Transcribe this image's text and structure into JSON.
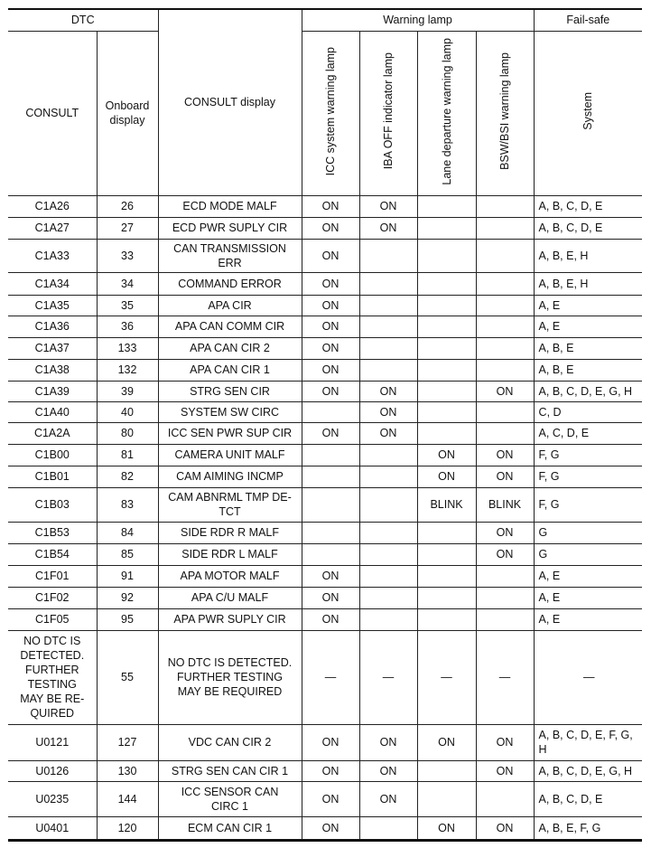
{
  "header": {
    "dtc": "DTC",
    "consult": "CONSULT",
    "onboard": "Onboard\ndisplay",
    "consult_display": "CONSULT display",
    "warning_lamp": "Warning lamp",
    "fail_safe": "Fail-safe",
    "icc": "ICC system warning lamp",
    "iba": "IBA OFF indicator lamp",
    "lane": "Lane departure warning lamp",
    "bsw": "BSW/BSI warning lamp",
    "system": "System"
  },
  "rows": [
    {
      "consult": "C1A26",
      "onboard": "26",
      "display": "ECD MODE MALF",
      "icc": "ON",
      "iba": "ON",
      "lane": "",
      "bsw": "",
      "system": "A, B, C, D, E"
    },
    {
      "consult": "C1A27",
      "onboard": "27",
      "display": "ECD PWR SUPLY CIR",
      "icc": "ON",
      "iba": "ON",
      "lane": "",
      "bsw": "",
      "system": "A, B, C, D, E"
    },
    {
      "consult": "C1A33",
      "onboard": "33",
      "display": "CAN TRANSMISSION\nERR",
      "icc": "ON",
      "iba": "",
      "lane": "",
      "bsw": "",
      "system": "A, B, E, H"
    },
    {
      "consult": "C1A34",
      "onboard": "34",
      "display": "COMMAND ERROR",
      "icc": "ON",
      "iba": "",
      "lane": "",
      "bsw": "",
      "system": "A, B, E, H"
    },
    {
      "consult": "C1A35",
      "onboard": "35",
      "display": "APA CIR",
      "icc": "ON",
      "iba": "",
      "lane": "",
      "bsw": "",
      "system": "A, E"
    },
    {
      "consult": "C1A36",
      "onboard": "36",
      "display": "APA CAN COMM CIR",
      "icc": "ON",
      "iba": "",
      "lane": "",
      "bsw": "",
      "system": "A, E"
    },
    {
      "consult": "C1A37",
      "onboard": "133",
      "display": "APA CAN CIR 2",
      "icc": "ON",
      "iba": "",
      "lane": "",
      "bsw": "",
      "system": "A, B, E"
    },
    {
      "consult": "C1A38",
      "onboard": "132",
      "display": "APA CAN CIR 1",
      "icc": "ON",
      "iba": "",
      "lane": "",
      "bsw": "",
      "system": "A, B, E"
    },
    {
      "consult": "C1A39",
      "onboard": "39",
      "display": "STRG SEN CIR",
      "icc": "ON",
      "iba": "ON",
      "lane": "",
      "bsw": "ON",
      "system": "A, B, C, D, E, G, H"
    },
    {
      "consult": "C1A40",
      "onboard": "40",
      "display": "SYSTEM SW CIRC",
      "icc": "",
      "iba": "ON",
      "lane": "",
      "bsw": "",
      "system": "C, D"
    },
    {
      "consult": "C1A2A",
      "onboard": "80",
      "display": "ICC SEN PWR SUP CIR",
      "icc": "ON",
      "iba": "ON",
      "lane": "",
      "bsw": "",
      "system": "A, C, D, E"
    },
    {
      "consult": "C1B00",
      "onboard": "81",
      "display": "CAMERA UNIT MALF",
      "icc": "",
      "iba": "",
      "lane": "ON",
      "bsw": "ON",
      "system": "F, G"
    },
    {
      "consult": "C1B01",
      "onboard": "82",
      "display": "CAM AIMING INCMP",
      "icc": "",
      "iba": "",
      "lane": "ON",
      "bsw": "ON",
      "system": "F, G"
    },
    {
      "consult": "C1B03",
      "onboard": "83",
      "display": "CAM ABNRML TMP DE-\nTCT",
      "icc": "",
      "iba": "",
      "lane": "BLINK",
      "bsw": "BLINK",
      "system": "F, G"
    },
    {
      "consult": "C1B53",
      "onboard": "84",
      "display": "SIDE RDR R MALF",
      "icc": "",
      "iba": "",
      "lane": "",
      "bsw": "ON",
      "system": "G"
    },
    {
      "consult": "C1B54",
      "onboard": "85",
      "display": "SIDE RDR L MALF",
      "icc": "",
      "iba": "",
      "lane": "",
      "bsw": "ON",
      "system": "G"
    },
    {
      "consult": "C1F01",
      "onboard": "91",
      "display": "APA MOTOR MALF",
      "icc": "ON",
      "iba": "",
      "lane": "",
      "bsw": "",
      "system": "A, E"
    },
    {
      "consult": "C1F02",
      "onboard": "92",
      "display": "APA C/U MALF",
      "icc": "ON",
      "iba": "",
      "lane": "",
      "bsw": "",
      "system": "A, E"
    },
    {
      "consult": "C1F05",
      "onboard": "95",
      "display": "APA PWR SUPLY CIR",
      "icc": "ON",
      "iba": "",
      "lane": "",
      "bsw": "",
      "system": "A, E"
    },
    {
      "consult": "NO DTC IS\nDETECTED.\nFURTHER\nTESTING\nMAY BE RE-\nQUIRED",
      "onboard": "55",
      "display": "NO DTC IS DETECTED.\nFURTHER TESTING\nMAY BE REQUIRED",
      "icc": "—",
      "iba": "—",
      "lane": "—",
      "bsw": "—",
      "system": "—"
    },
    {
      "consult": "U0121",
      "onboard": "127",
      "display": "VDC CAN CIR 2",
      "icc": "ON",
      "iba": "ON",
      "lane": "ON",
      "bsw": "ON",
      "system": "A, B, C, D, E, F, G,\nH"
    },
    {
      "consult": "U0126",
      "onboard": "130",
      "display": "STRG SEN CAN CIR 1",
      "icc": "ON",
      "iba": "ON",
      "lane": "",
      "bsw": "ON",
      "system": "A, B, C, D, E, G, H"
    },
    {
      "consult": "U0235",
      "onboard": "144",
      "display": "ICC SENSOR CAN\nCIRC 1",
      "icc": "ON",
      "iba": "ON",
      "lane": "",
      "bsw": "",
      "system": "A, B, C, D, E"
    },
    {
      "consult": "U0401",
      "onboard": "120",
      "display": "ECM CAN CIR 1",
      "icc": "ON",
      "iba": "",
      "lane": "ON",
      "bsw": "ON",
      "system": "A, B, E, F, G"
    }
  ]
}
